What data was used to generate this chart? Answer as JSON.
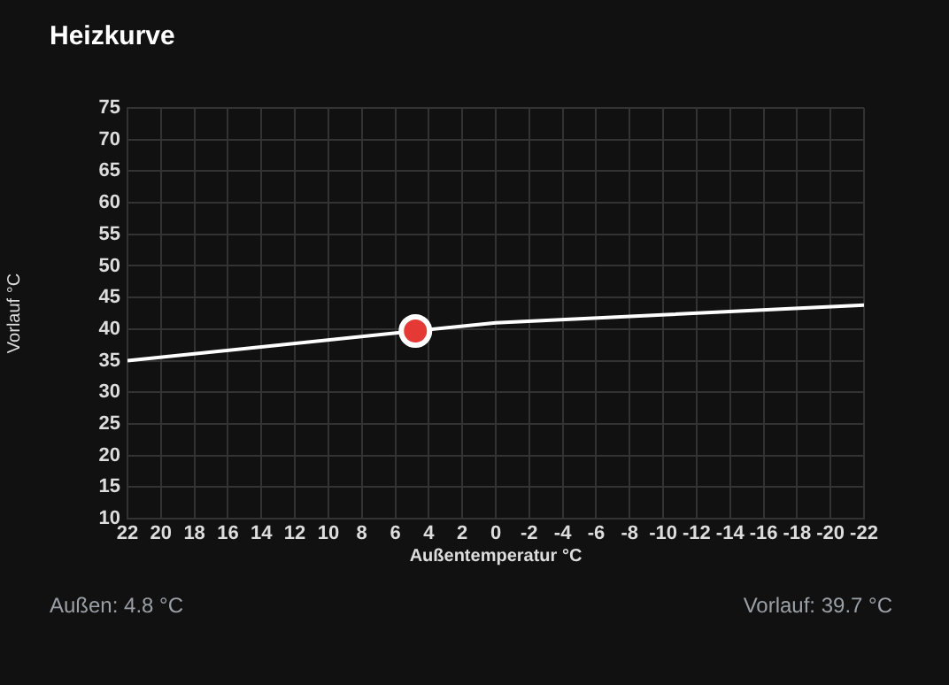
{
  "chart_data": {
    "type": "line",
    "title": "Heizkurve",
    "xlabel": "Außentemperatur °C",
    "ylabel": "Vorlauf °C",
    "series": [
      {
        "type": "line",
        "color": "#ffffff",
        "marker": "none",
        "x": [
          22,
          0,
          -22
        ],
        "values": [
          35,
          41,
          43.8
        ]
      },
      {
        "type": "scatter",
        "color": "#e53935",
        "marker": "circle",
        "x": [
          4.8
        ],
        "values": [
          39.7
        ]
      }
    ],
    "xlim": [
      22,
      -22
    ],
    "xticks": [
      22,
      20,
      18,
      16,
      14,
      12,
      10,
      8,
      6,
      4,
      2,
      0,
      -2,
      -4,
      -6,
      -8,
      -10,
      -12,
      -14,
      -16,
      -18,
      -20,
      -22
    ],
    "ylim": [
      10,
      75
    ],
    "yticks": [
      10,
      15,
      20,
      25,
      30,
      35,
      40,
      45,
      50,
      55,
      60,
      65,
      70,
      75
    ],
    "grid": true,
    "legend": false,
    "annotations": [
      "Außen: 4.8 °C",
      "Vorlauf: 39.7 °C"
    ]
  }
}
